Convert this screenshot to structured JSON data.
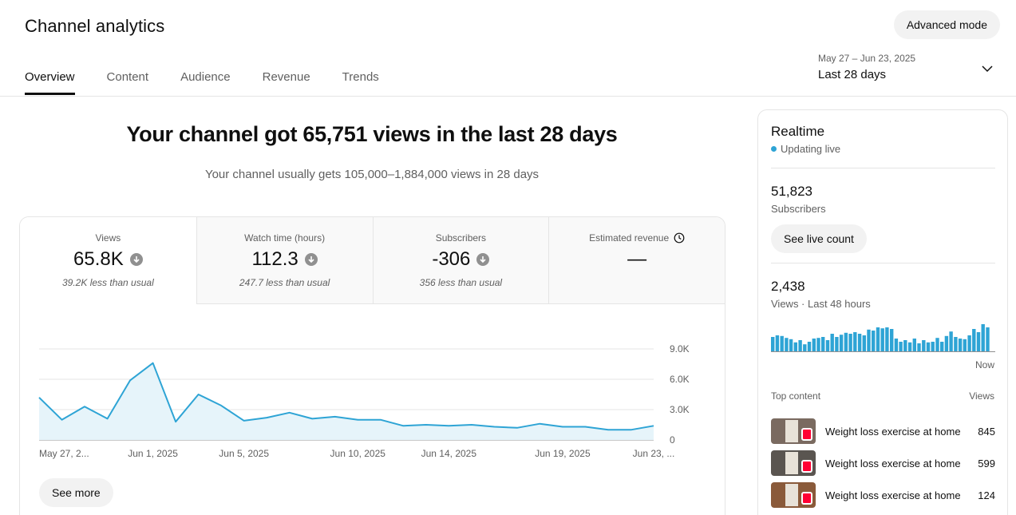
{
  "header": {
    "title": "Channel analytics",
    "advanced_mode_label": "Advanced mode",
    "tabs": [
      {
        "label": "Overview"
      },
      {
        "label": "Content"
      },
      {
        "label": "Audience"
      },
      {
        "label": "Revenue"
      },
      {
        "label": "Trends"
      }
    ],
    "active_tab": "Overview",
    "date_range": "May 27 – Jun 23, 2025",
    "date_label": "Last 28 days"
  },
  "summary": {
    "headline": "Your channel got 65,751 views in the last 28 days",
    "subline": "Your channel usually gets 105,000–1,884,000 views in 28 days"
  },
  "metrics": [
    {
      "label": "Views",
      "value": "65.8K",
      "note": "39.2K less than usual",
      "trend": "down"
    },
    {
      "label": "Watch time (hours)",
      "value": "112.3",
      "note": "247.7 less than usual",
      "trend": "down"
    },
    {
      "label": "Subscribers",
      "value": "-306",
      "note": "356 less than usual",
      "trend": "down"
    },
    {
      "label": "Estimated revenue",
      "value": "—",
      "note": "",
      "trend": "none"
    }
  ],
  "chart_data": {
    "type": "area",
    "series": [
      {
        "values": [
          4200,
          2000,
          3300,
          2100,
          5900,
          7600,
          1800,
          4500,
          3400,
          1900,
          2200,
          2700,
          2100,
          2300,
          2000,
          2000,
          1400,
          1500,
          1400,
          1500,
          1300,
          1200,
          1600,
          1300,
          1300,
          1000,
          1000,
          1400
        ]
      }
    ],
    "x_tick_labels": [
      "May 27, 2...",
      "Jun 1, 2025",
      "Jun 5, 2025",
      "Jun 10, 2025",
      "Jun 14, 2025",
      "Jun 19, 2025",
      "Jun 23, ..."
    ],
    "x_tick_indices": [
      0,
      5,
      9,
      14,
      18,
      23,
      27
    ],
    "y_tick_labels": [
      "9.0K",
      "6.0K",
      "3.0K",
      "0"
    ],
    "y_tick_values": [
      9000,
      6000,
      3000,
      0
    ],
    "ylim": [
      0,
      9000
    ],
    "grid": true,
    "color": "#2ea4d5"
  },
  "see_more_label": "See more",
  "realtime": {
    "title": "Realtime",
    "status": "Updating live",
    "subscribers_value": "51,823",
    "subscribers_label": "Subscribers",
    "live_count_label": "See live count",
    "views_value": "2,438",
    "views_label": "Views · Last 48 hours",
    "now_label": "Now",
    "hourly_views": [
      45,
      50,
      48,
      42,
      38,
      28,
      35,
      22,
      30,
      40,
      42,
      45,
      35,
      55,
      45,
      52,
      58,
      55,
      60,
      55,
      50,
      68,
      65,
      75,
      72,
      75,
      70,
      40,
      30,
      35,
      28,
      40,
      25,
      35,
      28,
      30,
      42,
      30,
      48,
      62,
      45,
      40,
      38,
      50,
      70,
      60,
      85,
      75
    ],
    "top_content_label": "Top content",
    "views_col_label": "Views",
    "top_content": [
      {
        "title": "Weight loss exercise at home",
        "views": "845",
        "thumb": "#7a6a60"
      },
      {
        "title": "Weight loss exercise at home",
        "views": "599",
        "thumb": "#5a5550"
      },
      {
        "title": "Weight loss exercise at home",
        "views": "124",
        "thumb": "#8a5a3a"
      }
    ]
  }
}
